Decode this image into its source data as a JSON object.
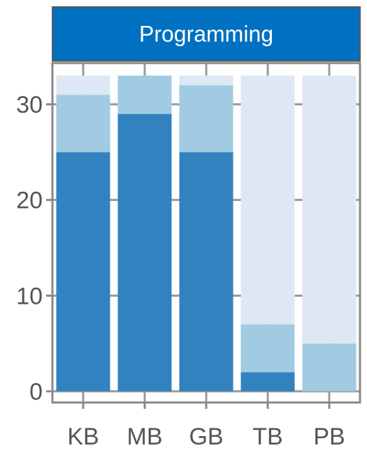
{
  "chart_data": {
    "type": "bar",
    "stacked": true,
    "title": "Programming",
    "xlabel": "",
    "ylabel": "",
    "categories": [
      "KB",
      "MB",
      "GB",
      "TB",
      "PB"
    ],
    "series": [
      {
        "color": "#3282c0",
        "values": [
          25,
          29,
          25,
          2,
          0
        ]
      },
      {
        "color": "#a0cbe2",
        "values": [
          6,
          4,
          7,
          5,
          5
        ]
      },
      {
        "color": "#dde8f4",
        "values": [
          2,
          0,
          1,
          26,
          28
        ]
      }
    ],
    "ylim": [
      0,
      33
    ],
    "yticks": [
      0,
      10,
      20,
      30
    ],
    "grid": true,
    "legend": "none",
    "colors": {
      "strip_background": "#0070c0",
      "panel_border": "#888888",
      "grid": "#999999",
      "background": "#ffffff"
    }
  }
}
